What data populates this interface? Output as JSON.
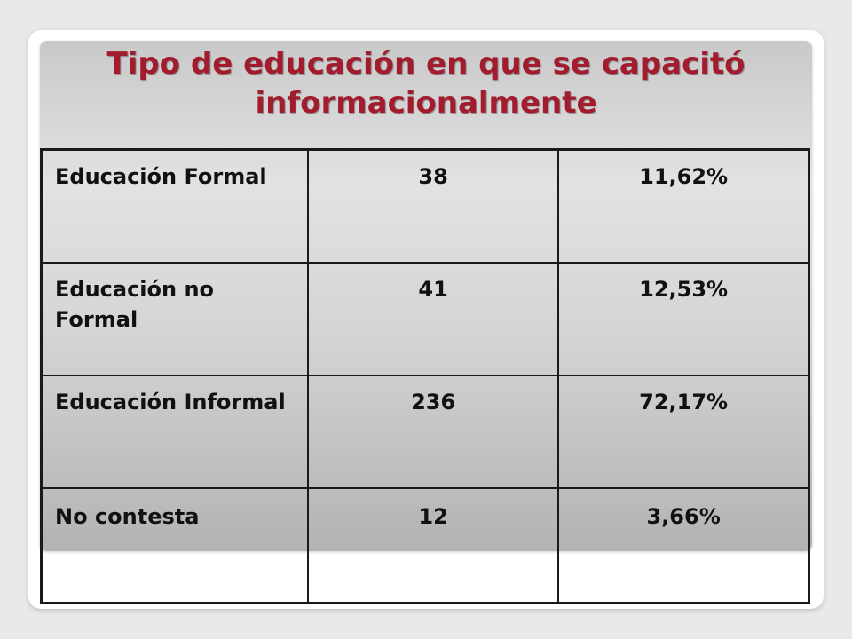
{
  "slide": {
    "title_line1": "Tipo de educación en que se capacitó",
    "title_line2": "informacionalmente"
  },
  "table": {
    "rows": [
      {
        "label": "Educación Formal",
        "count": "38",
        "percent": "11,62%"
      },
      {
        "label": "Educación no Formal",
        "count": "41",
        "percent": "12,53%"
      },
      {
        "label": "Educación Informal",
        "count": "236",
        "percent": "72,17%"
      },
      {
        "label": "No contesta",
        "count": "12",
        "percent": "3,66%"
      }
    ]
  },
  "colors": {
    "title": "#a21c2e",
    "table_border": "#1a1a1a",
    "text": "#111111"
  }
}
